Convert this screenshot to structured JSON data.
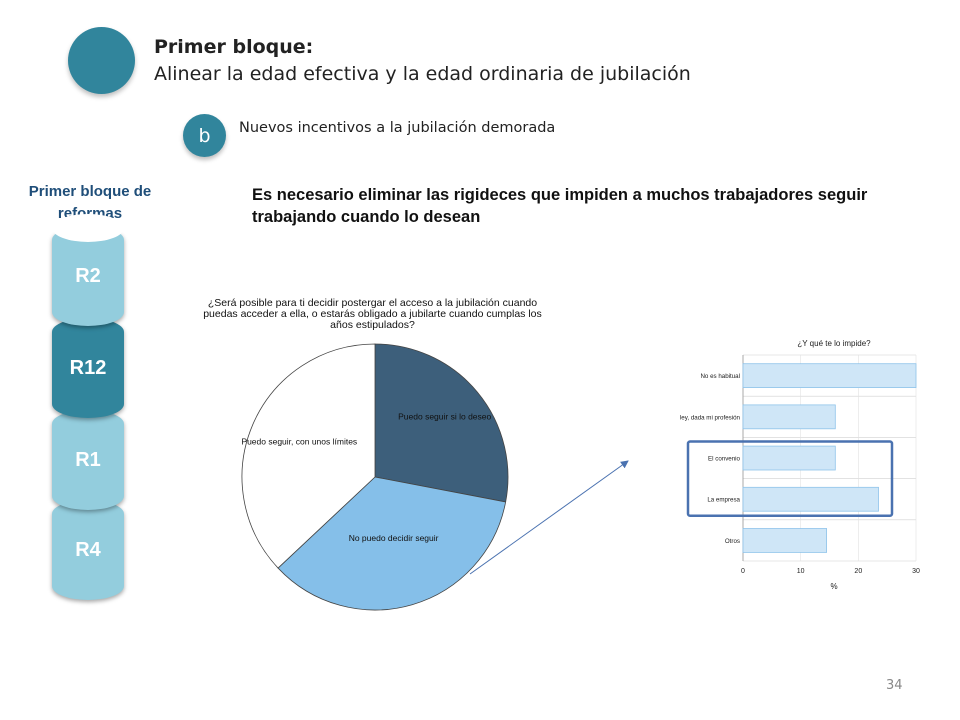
{
  "header": {
    "title": "Primer bloque:",
    "subtitle": "Alinear la edad efectiva y la edad ordinaria de jubilación"
  },
  "subsection": {
    "letter": "b",
    "text": "Nuevos incentivos a la jubilación demorada"
  },
  "stack": {
    "title": "Primer bloque de reformas",
    "items": [
      "R2",
      "R12",
      "R1",
      "R4"
    ]
  },
  "statement": "Es necesario eliminar las rigideces que impiden a muchos trabajadores seguir trabajando cuando lo desean",
  "colors": {
    "accent": "#31859c",
    "cylinder_light": "#93cddd",
    "pie_dark": "#3d5f7b",
    "pie_light": "#85bfe9",
    "bar_fill": "#cfe6f7",
    "bar_stroke": "#8ec3ea",
    "highlight_box": "#4a72b0"
  },
  "chart_data": [
    {
      "type": "pie",
      "title": "¿Será posible para ti decidir postergar el acceso a la jubilación cuando puedas acceder a ella, o estarás obligado a jubilarte cuando cumplas los años estipulados?",
      "categories": [
        "Puedo seguir si lo deseo",
        "No puedo decidir seguir",
        "Puedo seguir, con unos límites"
      ],
      "values": [
        28,
        35,
        37
      ],
      "colors": [
        "#3d5f7b",
        "#85bfe9",
        "#ffffff"
      ]
    },
    {
      "type": "bar",
      "orientation": "horizontal",
      "title": "¿Y qué te lo impide?",
      "categories": [
        "No es habitual",
        "Por ley, dada mi profesión",
        "El convenio",
        "La empresa",
        "Otros"
      ],
      "values": [
        30,
        16,
        16,
        23.5,
        14.5
      ],
      "xlabel": "%",
      "xlim": [
        0,
        30
      ],
      "xticks": [
        0,
        10,
        20,
        30
      ],
      "grid": true,
      "highlighted": [
        "El convenio",
        "La empresa"
      ]
    }
  ],
  "page_number": "34"
}
